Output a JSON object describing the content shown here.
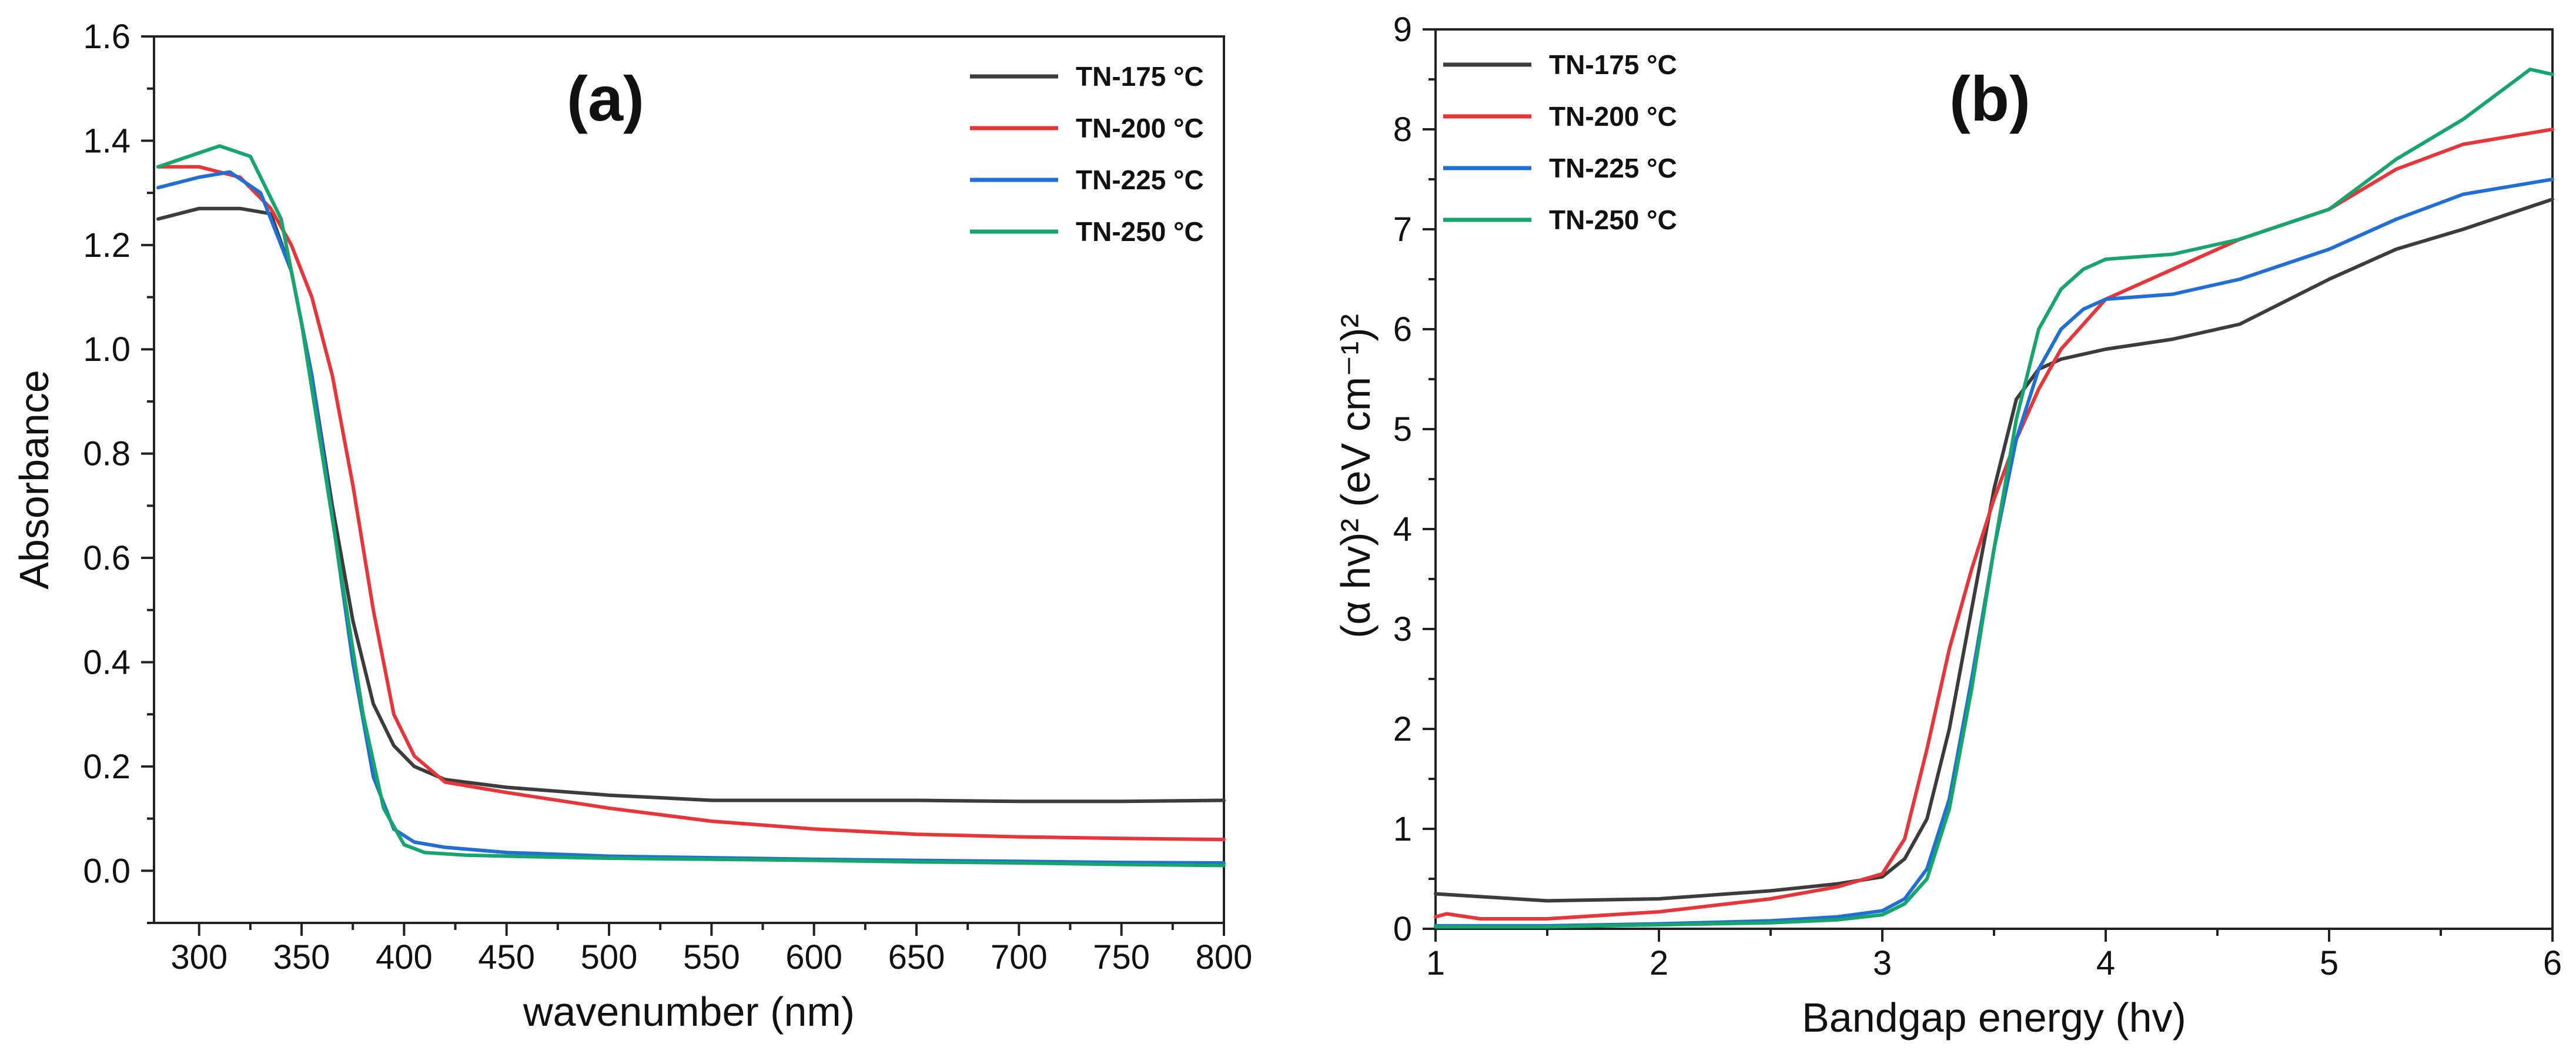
{
  "chart_data": [
    {
      "type": "line",
      "panel_label": "(a)",
      "xlabel": "wavenumber (nm)",
      "ylabel": "Absorbance",
      "xlim": [
        278,
        800
      ],
      "ylim": [
        -0.1,
        1.6
      ],
      "xticks": [
        300,
        350,
        400,
        450,
        500,
        550,
        600,
        650,
        700,
        750,
        800
      ],
      "yticks": [
        0.0,
        0.2,
        0.4,
        0.6,
        0.8,
        1.0,
        1.2,
        1.4,
        1.6
      ],
      "ytick_labels": [
        "0.0",
        "0.2",
        "0.4",
        "0.6",
        "0.8",
        "1.0",
        "1.2",
        "1.4",
        "1.6"
      ],
      "legend_position": "top-right",
      "series": [
        {
          "name": "TN-175 °C",
          "color": "#3c3c3c",
          "x": [
            280,
            300,
            320,
            335,
            345,
            355,
            365,
            375,
            385,
            395,
            405,
            420,
            450,
            500,
            550,
            600,
            650,
            700,
            750,
            800
          ],
          "y": [
            1.25,
            1.27,
            1.27,
            1.26,
            1.15,
            0.95,
            0.7,
            0.48,
            0.32,
            0.24,
            0.2,
            0.175,
            0.16,
            0.145,
            0.135,
            0.135,
            0.135,
            0.133,
            0.133,
            0.135
          ]
        },
        {
          "name": "TN-200 °C",
          "color": "#e8353a",
          "x": [
            280,
            300,
            320,
            335,
            345,
            355,
            365,
            375,
            385,
            395,
            405,
            420,
            450,
            500,
            550,
            600,
            650,
            700,
            750,
            800
          ],
          "y": [
            1.35,
            1.35,
            1.33,
            1.27,
            1.2,
            1.1,
            0.95,
            0.74,
            0.5,
            0.3,
            0.22,
            0.17,
            0.15,
            0.12,
            0.095,
            0.08,
            0.07,
            0.065,
            0.062,
            0.06
          ]
        },
        {
          "name": "TN-225 °C",
          "color": "#1f6fd6",
          "x": [
            280,
            300,
            315,
            330,
            345,
            355,
            365,
            375,
            385,
            395,
            405,
            420,
            450,
            500,
            550,
            600,
            650,
            700,
            750,
            800
          ],
          "y": [
            1.31,
            1.33,
            1.34,
            1.3,
            1.15,
            0.95,
            0.68,
            0.4,
            0.18,
            0.08,
            0.055,
            0.045,
            0.035,
            0.028,
            0.025,
            0.022,
            0.02,
            0.018,
            0.016,
            0.015
          ]
        },
        {
          "name": "TN-250 °C",
          "color": "#16a56c",
          "x": [
            280,
            295,
            310,
            325,
            340,
            350,
            360,
            370,
            380,
            390,
            400,
            410,
            430,
            460,
            500,
            550,
            600,
            650,
            700,
            750,
            800
          ],
          "y": [
            1.35,
            1.37,
            1.39,
            1.37,
            1.25,
            1.05,
            0.8,
            0.55,
            0.3,
            0.12,
            0.05,
            0.035,
            0.03,
            0.027,
            0.024,
            0.022,
            0.02,
            0.017,
            0.015,
            0.012,
            0.01
          ]
        }
      ]
    },
    {
      "type": "line",
      "panel_label": "(b)",
      "xlabel": "Bandgap energy (hv)",
      "ylabel": "(α hv)² (eV cm⁻¹)²",
      "xlim": [
        1,
        6
      ],
      "ylim": [
        0,
        9
      ],
      "xticks": [
        1,
        2,
        3,
        4,
        5,
        6
      ],
      "yticks": [
        0,
        1,
        2,
        3,
        4,
        5,
        6,
        7,
        8,
        9
      ],
      "ytick_labels": [
        "0",
        "1",
        "2",
        "3",
        "4",
        "5",
        "6",
        "7",
        "8",
        "9"
      ],
      "legend_position": "top-left",
      "series": [
        {
          "name": "TN-175 °C",
          "color": "#3c3c3c",
          "x": [
            1.0,
            1.5,
            2.0,
            2.5,
            2.8,
            3.0,
            3.1,
            3.2,
            3.3,
            3.4,
            3.5,
            3.6,
            3.7,
            3.8,
            4.0,
            4.3,
            4.6,
            5.0,
            5.3,
            5.6,
            6.0
          ],
          "y": [
            0.35,
            0.28,
            0.3,
            0.38,
            0.45,
            0.52,
            0.7,
            1.1,
            2.0,
            3.2,
            4.4,
            5.3,
            5.6,
            5.7,
            5.8,
            5.9,
            6.05,
            6.5,
            6.8,
            7.0,
            7.3
          ]
        },
        {
          "name": "TN-200 °C",
          "color": "#e8353a",
          "x": [
            1.0,
            1.05,
            1.2,
            1.5,
            2.0,
            2.5,
            2.8,
            3.0,
            3.1,
            3.2,
            3.3,
            3.4,
            3.5,
            3.6,
            3.7,
            3.8,
            4.0,
            4.3,
            4.6,
            5.0,
            5.3,
            5.6,
            6.0
          ],
          "y": [
            0.12,
            0.15,
            0.1,
            0.1,
            0.17,
            0.3,
            0.42,
            0.55,
            0.9,
            1.8,
            2.8,
            3.6,
            4.3,
            4.9,
            5.4,
            5.8,
            6.3,
            6.6,
            6.9,
            7.2,
            7.6,
            7.85,
            8.0
          ]
        },
        {
          "name": "TN-225 °C",
          "color": "#1f6fd6",
          "x": [
            1.0,
            1.5,
            2.0,
            2.5,
            2.8,
            3.0,
            3.1,
            3.2,
            3.3,
            3.4,
            3.5,
            3.6,
            3.7,
            3.8,
            3.9,
            4.0,
            4.3,
            4.6,
            5.0,
            5.3,
            5.6,
            6.0
          ],
          "y": [
            0.03,
            0.03,
            0.05,
            0.08,
            0.12,
            0.18,
            0.3,
            0.6,
            1.3,
            2.5,
            3.8,
            4.9,
            5.6,
            6.0,
            6.2,
            6.3,
            6.35,
            6.5,
            6.8,
            7.1,
            7.35,
            7.5
          ]
        },
        {
          "name": "TN-250 °C",
          "color": "#16a56c",
          "x": [
            1.0,
            1.5,
            2.0,
            2.5,
            2.8,
            3.0,
            3.1,
            3.2,
            3.3,
            3.4,
            3.5,
            3.6,
            3.7,
            3.8,
            3.9,
            4.0,
            4.3,
            4.6,
            5.0,
            5.3,
            5.6,
            5.9,
            6.0
          ],
          "y": [
            0.02,
            0.02,
            0.04,
            0.06,
            0.09,
            0.14,
            0.25,
            0.5,
            1.2,
            2.4,
            3.8,
            5.1,
            6.0,
            6.4,
            6.6,
            6.7,
            6.75,
            6.9,
            7.2,
            7.7,
            8.1,
            8.6,
            8.55
          ]
        }
      ]
    }
  ]
}
